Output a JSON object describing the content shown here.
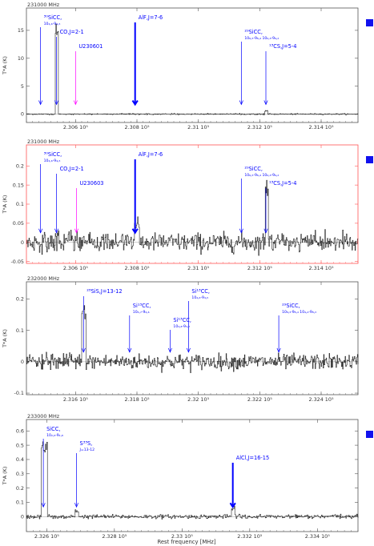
{
  "colors": {
    "frame": "#555555",
    "frame_highlight": "#ff5555",
    "annotation": "#0000ff",
    "annotation_alt": "#ff00ff",
    "trace": "#111111",
    "marker": "#1111ee"
  },
  "x_axis_title": "Rest frequency [MHz]",
  "chart_data": [
    {
      "type": "line",
      "band_label": "231000 MHz",
      "xlim": [
        230440,
        231520
      ],
      "ylim": [
        -1.5,
        19
      ],
      "ylabel": "T*A (K)",
      "x_ticks": [
        230600,
        230800,
        231000,
        231200,
        231400
      ],
      "x_tick_labels": [
        "2.306 10⁵",
        "2.308 10⁵",
        "2.31 10⁵",
        "2.312 10⁵",
        "2.314 10⁵"
      ],
      "y_ticks": [
        0,
        5,
        10,
        15
      ],
      "y_tick_labels": [
        "0",
        "5",
        "10",
        "15"
      ],
      "frame_color": "#555555",
      "has_marker": true,
      "noise": 0.05,
      "features": [
        {
          "center": 230538,
          "width": 5,
          "height": 16.5
        },
        {
          "center": 231220,
          "width": 4,
          "height": 0.6
        }
      ],
      "annotations": [
        {
          "x": 230486,
          "main": "³⁰SiCC,",
          "sub": "10₄,₆-9₄,₅",
          "color": "#0000ff",
          "bold": false
        },
        {
          "x": 230538,
          "main": "CO,J=2-1",
          "sub": "",
          "color": "#0000ff",
          "bold": false
        },
        {
          "x": 230600,
          "main": "U230601",
          "sub": "",
          "color": "#ff00ff",
          "bold": false
        },
        {
          "x": 230794,
          "main": "AlF,J=7-6",
          "sub": "",
          "color": "#0000ff",
          "bold": true
        },
        {
          "x": 231140,
          "main": "²⁹SiCC,",
          "sub": "10₆,₅-9₆,₄  10₆,₃-9₆,₂",
          "color": "#0000ff",
          "bold": false
        },
        {
          "x": 231220,
          "main": "¹³CS,J=5-4",
          "sub": "",
          "color": "#0000ff",
          "bold": false
        }
      ]
    },
    {
      "type": "line",
      "band_label": "231000 MHz",
      "xlim": [
        230440,
        231520
      ],
      "ylim": [
        -0.055,
        0.255
      ],
      "ylabel": "T*A (K)",
      "x_ticks": [
        230600,
        230800,
        231000,
        231200,
        231400
      ],
      "x_tick_labels": [
        "2.306 10⁵",
        "2.308 10⁵",
        "2.31 10⁵",
        "2.312 10⁵",
        "2.314 10⁵"
      ],
      "y_ticks": [
        -0.05,
        0,
        0.05,
        0.1,
        0.15,
        0.2
      ],
      "y_tick_labels": [
        "-0.05",
        "0",
        "0.05",
        "0.1",
        "0.15",
        "0.2"
      ],
      "frame_color": "#ff5555",
      "has_marker": true,
      "noise": 0.012,
      "features": [
        {
          "center": 230798,
          "width": 6,
          "height": 0.055
        },
        {
          "center": 231222,
          "width": 5,
          "height": 0.15
        },
        {
          "center": 230540,
          "width": 4,
          "height": 0.02
        }
      ],
      "annotations": [
        {
          "x": 230486,
          "main": "³⁰SiCC,",
          "sub": "10₄,₆-9₄,₅",
          "color": "#0000ff",
          "bold": false
        },
        {
          "x": 230538,
          "main": "CO,J=2-1",
          "sub": "",
          "color": "#0000ff",
          "bold": false
        },
        {
          "x": 230603,
          "main": "U230603",
          "sub": "",
          "color": "#ff00ff",
          "bold": false
        },
        {
          "x": 230794,
          "main": "AlF,J=7-6",
          "sub": "",
          "color": "#0000ff",
          "bold": true
        },
        {
          "x": 231140,
          "main": "²⁹SiCC,",
          "sub": "10₆,₅-9₆,₄  10₆,₃-9₆,₂",
          "color": "#0000ff",
          "bold": false
        },
        {
          "x": 231220,
          "main": "¹³CS,J=5-4",
          "sub": "",
          "color": "#0000ff",
          "bold": false
        }
      ]
    },
    {
      "type": "line",
      "band_label": "232000 MHz",
      "xlim": [
        231440,
        232520
      ],
      "ylim": [
        -0.105,
        0.255
      ],
      "ylabel": "T*A (K)",
      "x_ticks": [
        231600,
        231800,
        232000,
        232200,
        232400
      ],
      "x_tick_labels": [
        "2.316 10⁵",
        "2.318 10⁵",
        "2.32 10⁵",
        "2.322 10⁵",
        "2.324 10⁵"
      ],
      "y_ticks": [
        -0.1,
        0,
        0.1,
        0.2
      ],
      "y_tick_labels": [
        "-0.1",
        "0",
        "0.1",
        "0.2"
      ],
      "frame_color": "#555555",
      "has_marker": false,
      "noise": 0.012,
      "features": [
        {
          "center": 231626,
          "width": 6,
          "height": 0.17
        }
      ],
      "annotations": [
        {
          "x": 231626,
          "main": "²⁸SiS,J=13-12",
          "sub": "",
          "color": "#0000ff",
          "bold": false
        },
        {
          "x": 231776,
          "main": "Si¹³CC,",
          "sub": "10₄,₇-9₄,₆",
          "color": "#0000ff",
          "bold": false
        },
        {
          "x": 231908,
          "main": "Si¹³CC,",
          "sub": "10₃,₈-9₃,₇",
          "color": "#0000ff",
          "bold": false
        },
        {
          "x": 231968,
          "main": "Si¹³CC,",
          "sub": "10₄,₆-9₄,₅",
          "color": "#0000ff",
          "bold": false
        },
        {
          "x": 232262,
          "main": "²⁹SiCC,",
          "sub": "10₈,₃-9₈,₄  10₄,₄-9₈,₃",
          "color": "#0000ff",
          "bold": false
        }
      ]
    },
    {
      "type": "line",
      "band_label": "233000 MHz",
      "xlim": [
        232540,
        233520
      ],
      "ylim": [
        -0.105,
        0.68
      ],
      "ylabel": "T*A (K)",
      "x_ticks": [
        232600,
        232800,
        233000,
        233200,
        233400
      ],
      "x_tick_labels": [
        "2.326 10⁵",
        "2.328 10⁵",
        "2.33 10⁵",
        "2.332 10⁵",
        "2.334 10⁵"
      ],
      "y_ticks": [
        0,
        0.1,
        0.2,
        0.3,
        0.4,
        0.5,
        0.6
      ],
      "y_tick_labels": [
        "0",
        "0.1",
        "0.2",
        "0.3",
        "0.4",
        "0.5",
        "0.6"
      ],
      "frame_color": "#555555",
      "has_marker": true,
      "noise": 0.007,
      "features": [
        {
          "center": 232592,
          "width": 8,
          "height": 0.53
        },
        {
          "center": 232688,
          "width": 4,
          "height": 0.04
        },
        {
          "center": 233150,
          "width": 4,
          "height": 0.06
        }
      ],
      "annotations": [
        {
          "x": 232590,
          "main": "SiCC,",
          "sub": "10₂,₉-9₂,₈",
          "color": "#0000ff",
          "bold": false
        },
        {
          "x": 232688,
          "main": "S³³S,",
          "sub": "J=13-12",
          "color": "#0000ff",
          "bold": false
        },
        {
          "x": 233150,
          "main": "AlCl,J=16-15",
          "sub": "",
          "color": "#0000ff",
          "bold": true
        }
      ]
    }
  ]
}
